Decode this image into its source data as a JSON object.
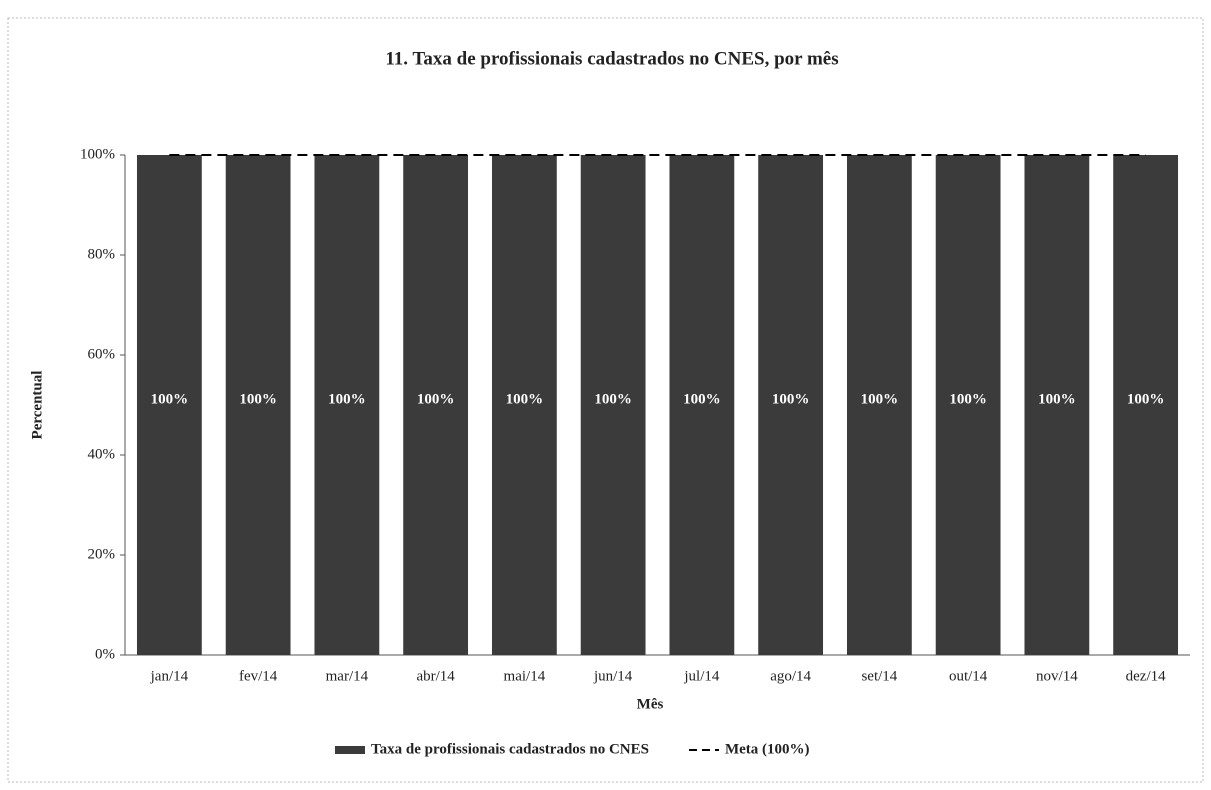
{
  "chart_data": {
    "type": "bar",
    "title": "11. Taxa de profissionais cadastrados no CNES, por mês",
    "x_label": "Mês",
    "y_label": "Percentual",
    "categories": [
      "jan/14",
      "fev/14",
      "mar/14",
      "abr/14",
      "mai/14",
      "jun/14",
      "jul/14",
      "ago/14",
      "set/14",
      "out/14",
      "nov/14",
      "dez/14"
    ],
    "series": [
      {
        "name": "Taxa de profissionais cadastrados no CNES",
        "color": "#3b3b3b",
        "values": [
          100,
          100,
          100,
          100,
          100,
          100,
          100,
          100,
          100,
          100,
          100,
          100
        ],
        "value_labels": [
          "100%",
          "100%",
          "100%",
          "100%",
          "100%",
          "100%",
          "100%",
          "100%",
          "100%",
          "100%",
          "100%",
          "100%"
        ]
      },
      {
        "name": "Meta (100%)",
        "color": "#000000",
        "style": "dashed",
        "values": [
          100,
          100,
          100,
          100,
          100,
          100,
          100,
          100,
          100,
          100,
          100,
          100
        ]
      }
    ],
    "ylim": [
      0,
      100
    ],
    "yticks": [
      {
        "value": 0,
        "label": "0%"
      },
      {
        "value": 20,
        "label": "20%"
      },
      {
        "value": 40,
        "label": "40%"
      },
      {
        "value": 60,
        "label": "60%"
      },
      {
        "value": 80,
        "label": "80%"
      },
      {
        "value": 100,
        "label": "100%"
      }
    ],
    "grid": false,
    "legend": "bottom"
  }
}
